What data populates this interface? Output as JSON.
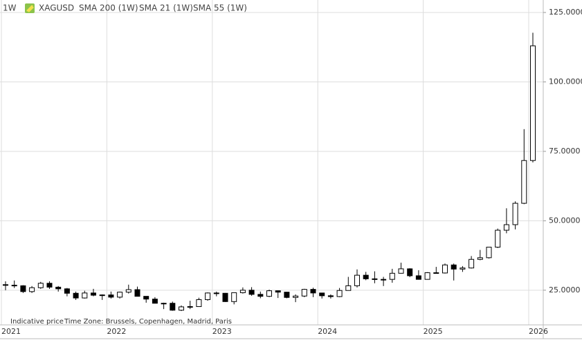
{
  "chart_data": {
    "type": "candlestick",
    "title": "XAGUSD",
    "timeframe": "1W",
    "indicators": [
      "SMA 200 (1W)",
      "SMA 21 (1W)",
      "SMA 55 (1W)"
    ],
    "footer_note": "Indicative price",
    "time_zone": "Time Zone: Brussels, Copenhagen, Madrid, Paris",
    "categories": [
      "2021",
      null,
      null,
      null,
      null,
      null,
      null,
      null,
      null,
      null,
      null,
      null,
      "2022",
      null,
      null,
      null,
      null,
      null,
      null,
      null,
      null,
      null,
      null,
      null,
      "2023",
      null,
      null,
      null,
      null,
      null,
      null,
      null,
      null,
      null,
      null,
      null,
      "2024",
      null,
      null,
      null,
      null,
      null,
      null,
      null,
      null,
      null,
      null,
      null,
      "2025",
      null,
      null,
      null,
      null,
      null,
      null,
      null,
      null,
      null,
      null,
      null,
      "2026"
    ],
    "open": [
      27.0,
      26.8,
      26.6,
      24.5,
      25.9,
      27.5,
      26.1,
      25.5,
      23.9,
      22.2,
      24.0,
      23.2,
      23.3,
      22.5,
      24.3,
      25.2,
      22.8,
      21.8,
      20.3,
      20.3,
      17.8,
      19.0,
      19.1,
      21.6,
      24.0,
      23.9,
      20.9,
      24.1,
      25.0,
      23.5,
      22.8,
      24.8,
      24.3,
      22.4,
      22.9,
      25.3,
      24.0,
      23.0,
      22.7,
      24.9,
      26.6,
      30.4,
      29.1,
      28.9,
      28.9,
      31.1,
      32.7,
      30.2,
      28.9,
      31.3,
      31.2,
      34.1,
      32.6,
      33.0,
      36.1,
      36.7,
      40.5,
      46.6,
      48.6,
      56.3,
      71.7
    ],
    "high": [
      28.2,
      28.5,
      26.8,
      26.5,
      28.0,
      28.2,
      26.5,
      25.8,
      24.5,
      24.8,
      25.5,
      23.5,
      24.5,
      24.5,
      27.0,
      26.3,
      22.8,
      22.5,
      20.5,
      20.9,
      19.5,
      21.2,
      22.3,
      24.2,
      24.5,
      24.0,
      24.2,
      26.0,
      26.1,
      24.5,
      25.2,
      24.9,
      24.4,
      23.5,
      25.5,
      25.9,
      24.0,
      23.5,
      25.8,
      29.8,
      32.5,
      31.6,
      31.8,
      29.8,
      32.7,
      34.9,
      32.9,
      32.2,
      31.5,
      33.4,
      34.6,
      34.6,
      33.7,
      37.3,
      39.5,
      40.5,
      47.2,
      54.5,
      57.0,
      83.0,
      117.7
    ],
    "low": [
      25.0,
      25.8,
      24.0,
      24.0,
      25.5,
      25.5,
      24.5,
      22.8,
      21.5,
      22.0,
      22.8,
      21.5,
      22.0,
      22.0,
      23.8,
      22.8,
      20.5,
      20.2,
      18.2,
      17.6,
      17.5,
      18.2,
      19.0,
      21.2,
      22.8,
      20.8,
      19.9,
      23.8,
      23.0,
      22.1,
      22.5,
      22.2,
      22.1,
      20.7,
      22.5,
      22.5,
      22.0,
      22.0,
      22.5,
      24.9,
      26.0,
      28.6,
      27.5,
      26.5,
      27.7,
      31.0,
      29.7,
      28.8,
      28.8,
      31.0,
      31.0,
      28.5,
      31.6,
      32.8,
      35.8,
      36.4,
      40.2,
      45.5,
      46.9,
      56.0,
      71.0
    ],
    "close": [
      26.8,
      26.6,
      24.5,
      25.9,
      27.5,
      26.1,
      25.5,
      23.9,
      22.2,
      24.0,
      23.2,
      23.3,
      22.5,
      24.3,
      25.2,
      22.8,
      21.8,
      20.3,
      20.3,
      17.8,
      19.0,
      19.1,
      21.6,
      24.0,
      23.9,
      20.9,
      24.1,
      25.0,
      23.5,
      22.8,
      24.8,
      24.3,
      22.4,
      22.9,
      25.3,
      24.0,
      23.0,
      22.7,
      24.9,
      26.6,
      30.4,
      29.1,
      28.9,
      28.9,
      31.1,
      32.7,
      30.2,
      28.9,
      31.3,
      31.2,
      34.1,
      32.6,
      33.0,
      36.1,
      36.7,
      40.5,
      46.6,
      48.6,
      56.3,
      71.7,
      113.0
    ],
    "up_color": "#ffffff",
    "down_color": "#000000",
    "ylim": [
      15.5,
      129.5
    ],
    "yticks": [
      {
        "value": 25,
        "label": "25.0000"
      },
      {
        "value": 50,
        "label": "50.0000"
      },
      {
        "value": 75,
        "label": "75.0000"
      },
      {
        "value": 100,
        "label": "100.0000"
      },
      {
        "value": 125,
        "label": "125.0000"
      }
    ],
    "grid": true
  }
}
